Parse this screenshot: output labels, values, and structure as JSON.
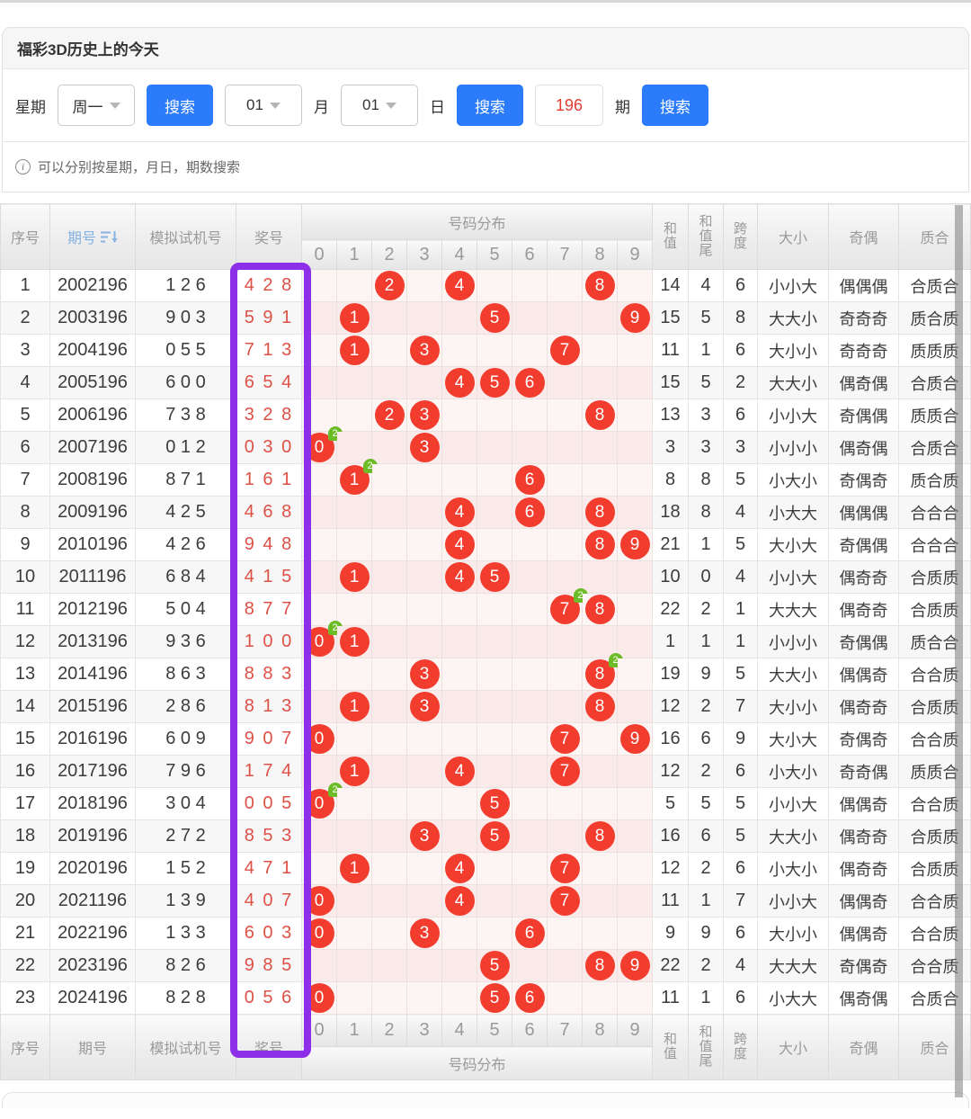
{
  "panel": {
    "title": "福彩3D历史上的今天"
  },
  "search": {
    "week_label": "星期",
    "week_value": "周一",
    "search_label": "搜索",
    "month_value": "01",
    "month_label": "月",
    "day_value": "01",
    "day_label": "日",
    "issue_value": "196",
    "issue_label": "期"
  },
  "info": {
    "text": "可以分别按星期，月日，期数搜索"
  },
  "colors": {
    "accent_blue": "#2b7bfa",
    "ball_red": "#f23c2e",
    "badge_green": "#6cbc28",
    "highlight_purple": "#8d2ee8",
    "prize_red": "#dd5147"
  },
  "table": {
    "headers": {
      "seq": "序号",
      "issue": "期号",
      "sim": "模拟试机号",
      "prize": "奖号",
      "dist": "号码分布",
      "digits": [
        "0",
        "1",
        "2",
        "3",
        "4",
        "5",
        "6",
        "7",
        "8",
        "9"
      ],
      "sum": "和值",
      "sum_tail": "和值尾",
      "span": "跨度",
      "size": "大小",
      "parity": "奇偶",
      "prime": "质合"
    },
    "rows": [
      {
        "seq": "1",
        "issue": "2002196",
        "sim": "1 2 6",
        "prize": "4 2 8",
        "balls": [
          {
            "d": 2
          },
          {
            "d": 4
          },
          {
            "d": 8
          }
        ],
        "sum": "14",
        "tail": "4",
        "span": "6",
        "size": "小小大",
        "parity": "偶偶偶",
        "prime": "合质合"
      },
      {
        "seq": "2",
        "issue": "2003196",
        "sim": "9 0 3",
        "prize": "5 9 1",
        "balls": [
          {
            "d": 1
          },
          {
            "d": 5
          },
          {
            "d": 9
          }
        ],
        "sum": "15",
        "tail": "5",
        "span": "8",
        "size": "大大小",
        "parity": "奇奇奇",
        "prime": "质合质"
      },
      {
        "seq": "3",
        "issue": "2004196",
        "sim": "0 5 5",
        "prize": "7 1 3",
        "balls": [
          {
            "d": 1
          },
          {
            "d": 3
          },
          {
            "d": 7
          }
        ],
        "sum": "11",
        "tail": "1",
        "span": "6",
        "size": "大小小",
        "parity": "奇奇奇",
        "prime": "质质质"
      },
      {
        "seq": "4",
        "issue": "2005196",
        "sim": "6 0 0",
        "prize": "6 5 4",
        "balls": [
          {
            "d": 4
          },
          {
            "d": 5
          },
          {
            "d": 6
          }
        ],
        "sum": "15",
        "tail": "5",
        "span": "2",
        "size": "大大小",
        "parity": "偶奇偶",
        "prime": "合质合"
      },
      {
        "seq": "5",
        "issue": "2006196",
        "sim": "7 3 8",
        "prize": "3 2 8",
        "balls": [
          {
            "d": 2
          },
          {
            "d": 3
          },
          {
            "d": 8
          }
        ],
        "sum": "13",
        "tail": "3",
        "span": "6",
        "size": "小小大",
        "parity": "奇偶偶",
        "prime": "质质合"
      },
      {
        "seq": "6",
        "issue": "2007196",
        "sim": "0 1 2",
        "prize": "0 3 0",
        "balls": [
          {
            "d": 0,
            "dup": "2"
          },
          {
            "d": 3
          }
        ],
        "sum": "3",
        "tail": "3",
        "span": "3",
        "size": "小小小",
        "parity": "偶奇偶",
        "prime": "合质合"
      },
      {
        "seq": "7",
        "issue": "2008196",
        "sim": "8 7 1",
        "prize": "1 6 1",
        "balls": [
          {
            "d": 1,
            "dup": "2"
          },
          {
            "d": 6
          }
        ],
        "sum": "8",
        "tail": "8",
        "span": "5",
        "size": "小大小",
        "parity": "奇偶奇",
        "prime": "质合质"
      },
      {
        "seq": "8",
        "issue": "2009196",
        "sim": "4 2 5",
        "prize": "4 6 8",
        "balls": [
          {
            "d": 4
          },
          {
            "d": 6
          },
          {
            "d": 8
          }
        ],
        "sum": "18",
        "tail": "8",
        "span": "4",
        "size": "小大大",
        "parity": "偶偶偶",
        "prime": "合合合"
      },
      {
        "seq": "9",
        "issue": "2010196",
        "sim": "4 2 6",
        "prize": "9 4 8",
        "balls": [
          {
            "d": 4
          },
          {
            "d": 8
          },
          {
            "d": 9
          }
        ],
        "sum": "21",
        "tail": "1",
        "span": "5",
        "size": "大小大",
        "parity": "奇偶偶",
        "prime": "合合合"
      },
      {
        "seq": "10",
        "issue": "2011196",
        "sim": "6 8 4",
        "prize": "4 1 5",
        "balls": [
          {
            "d": 1
          },
          {
            "d": 4
          },
          {
            "d": 5
          }
        ],
        "sum": "10",
        "tail": "0",
        "span": "4",
        "size": "小小大",
        "parity": "偶奇奇",
        "prime": "合质质"
      },
      {
        "seq": "11",
        "issue": "2012196",
        "sim": "5 0 4",
        "prize": "8 7 7",
        "balls": [
          {
            "d": 7,
            "dup": "2"
          },
          {
            "d": 8
          }
        ],
        "sum": "22",
        "tail": "2",
        "span": "1",
        "size": "大大大",
        "parity": "偶奇奇",
        "prime": "合质质"
      },
      {
        "seq": "12",
        "issue": "2013196",
        "sim": "9 3 6",
        "prize": "1 0 0",
        "balls": [
          {
            "d": 0,
            "dup": "2"
          },
          {
            "d": 1
          }
        ],
        "sum": "1",
        "tail": "1",
        "span": "1",
        "size": "小小小",
        "parity": "奇偶偶",
        "prime": "质合合"
      },
      {
        "seq": "13",
        "issue": "2014196",
        "sim": "8 6 3",
        "prize": "8 8 3",
        "balls": [
          {
            "d": 3
          },
          {
            "d": 8,
            "dup": "2"
          }
        ],
        "sum": "19",
        "tail": "9",
        "span": "5",
        "size": "大大小",
        "parity": "偶偶奇",
        "prime": "合合质"
      },
      {
        "seq": "14",
        "issue": "2015196",
        "sim": "2 8 6",
        "prize": "8 1 3",
        "balls": [
          {
            "d": 1
          },
          {
            "d": 3
          },
          {
            "d": 8
          }
        ],
        "sum": "12",
        "tail": "2",
        "span": "7",
        "size": "大小小",
        "parity": "偶奇奇",
        "prime": "合质质"
      },
      {
        "seq": "15",
        "issue": "2016196",
        "sim": "6 0 9",
        "prize": "9 0 7",
        "balls": [
          {
            "d": 0
          },
          {
            "d": 7
          },
          {
            "d": 9
          }
        ],
        "sum": "16",
        "tail": "6",
        "span": "9",
        "size": "大小大",
        "parity": "奇偶奇",
        "prime": "合合质"
      },
      {
        "seq": "16",
        "issue": "2017196",
        "sim": "7 9 6",
        "prize": "1 7 4",
        "balls": [
          {
            "d": 1
          },
          {
            "d": 4
          },
          {
            "d": 7
          }
        ],
        "sum": "12",
        "tail": "2",
        "span": "6",
        "size": "小大小",
        "parity": "奇奇偶",
        "prime": "质质合"
      },
      {
        "seq": "17",
        "issue": "2018196",
        "sim": "3 0 4",
        "prize": "0 0 5",
        "balls": [
          {
            "d": 0,
            "dup": "2"
          },
          {
            "d": 5
          }
        ],
        "sum": "5",
        "tail": "5",
        "span": "5",
        "size": "小小大",
        "parity": "偶偶奇",
        "prime": "合合质"
      },
      {
        "seq": "18",
        "issue": "2019196",
        "sim": "2 7 2",
        "prize": "8 5 3",
        "balls": [
          {
            "d": 3
          },
          {
            "d": 5
          },
          {
            "d": 8
          }
        ],
        "sum": "16",
        "tail": "6",
        "span": "5",
        "size": "大大小",
        "parity": "偶奇奇",
        "prime": "合质质"
      },
      {
        "seq": "19",
        "issue": "2020196",
        "sim": "1 5 2",
        "prize": "4 7 1",
        "balls": [
          {
            "d": 1
          },
          {
            "d": 4
          },
          {
            "d": 7
          }
        ],
        "sum": "12",
        "tail": "2",
        "span": "6",
        "size": "小大小",
        "parity": "偶奇奇",
        "prime": "合质质"
      },
      {
        "seq": "20",
        "issue": "2021196",
        "sim": "1 3 9",
        "prize": "4 0 7",
        "balls": [
          {
            "d": 0
          },
          {
            "d": 4
          },
          {
            "d": 7
          }
        ],
        "sum": "11",
        "tail": "1",
        "span": "7",
        "size": "小小大",
        "parity": "偶偶奇",
        "prime": "合合质"
      },
      {
        "seq": "21",
        "issue": "2022196",
        "sim": "1 3 3",
        "prize": "6 0 3",
        "balls": [
          {
            "d": 0
          },
          {
            "d": 3
          },
          {
            "d": 6
          }
        ],
        "sum": "9",
        "tail": "9",
        "span": "6",
        "size": "大小小",
        "parity": "偶偶奇",
        "prime": "合合质"
      },
      {
        "seq": "22",
        "issue": "2023196",
        "sim": "8 2 6",
        "prize": "9 8 5",
        "balls": [
          {
            "d": 5
          },
          {
            "d": 8
          },
          {
            "d": 9
          }
        ],
        "sum": "22",
        "tail": "2",
        "span": "4",
        "size": "大大大",
        "parity": "奇偶奇",
        "prime": "合合质"
      },
      {
        "seq": "23",
        "issue": "2024196",
        "sim": "8 2 8",
        "prize": "0 5 6",
        "balls": [
          {
            "d": 0
          },
          {
            "d": 5
          },
          {
            "d": 6
          }
        ],
        "sum": "11",
        "tail": "1",
        "span": "6",
        "size": "小大大",
        "parity": "偶奇偶",
        "prime": "合质合"
      }
    ]
  }
}
